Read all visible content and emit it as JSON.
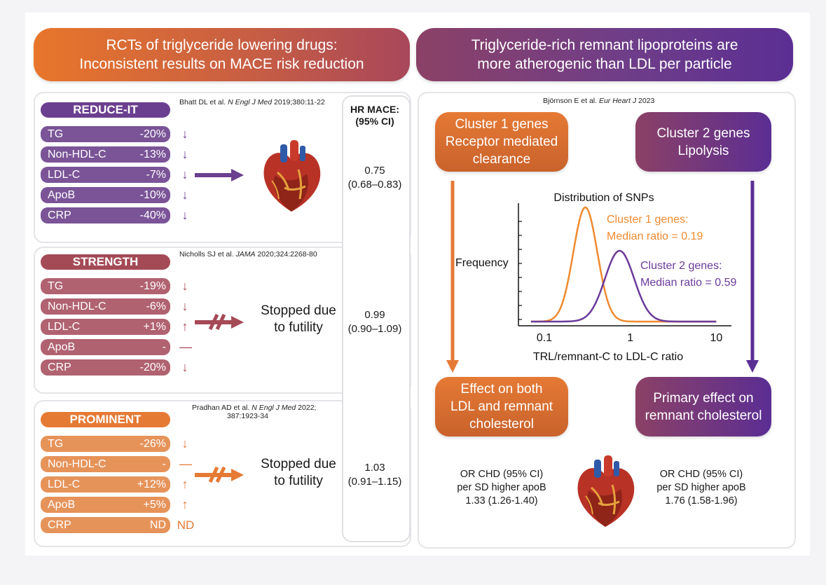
{
  "left_banner": {
    "line1": "RCTs of triglyceride lowering drugs:",
    "line2": "Inconsistent results on MACE risk reduction"
  },
  "right_banner": {
    "line1": "Triglyceride-rich remnant lipoproteins are",
    "line2": "more atherogenic than LDL per particle"
  },
  "hr_header": {
    "line1": "HR MACE:",
    "line2": "(95% CI)"
  },
  "trials": [
    {
      "name": "REDUCE-IT",
      "ref_plain": "Bhatt DL et al. ",
      "ref_journal": "N Engl J Med",
      "ref_tail": " 2019;380:11-22",
      "ref_line2": "",
      "color": "#6b3f8f",
      "rows": [
        {
          "name": "TG",
          "value": "-20%",
          "arrow": "↓"
        },
        {
          "name": "Non-HDL-C",
          "value": "-13%",
          "arrow": "↓"
        },
        {
          "name": "LDL-C",
          "value": "-7%",
          "arrow": "↓"
        },
        {
          "name": "ApoB",
          "value": "-10%",
          "arrow": "↓"
        },
        {
          "name": "CRP",
          "value": "-40%",
          "arrow": "↓"
        }
      ],
      "outcome": "",
      "hr": "0.75",
      "ci": "(0.68–0.83)"
    },
    {
      "name": "STRENGTH",
      "ref_plain": "Nicholls SJ et al. ",
      "ref_journal": "JAMA",
      "ref_tail": " 2020;324:2268-80",
      "ref_line2": "",
      "color": "#a44a57",
      "rows": [
        {
          "name": "TG",
          "value": "-19%",
          "arrow": "↓"
        },
        {
          "name": "Non-HDL-C",
          "value": "-6%",
          "arrow": "↓"
        },
        {
          "name": "LDL-C",
          "value": "+1%",
          "arrow": "↑"
        },
        {
          "name": "ApoB",
          "value": "-",
          "arrow": "—"
        },
        {
          "name": "CRP",
          "value": "-20%",
          "arrow": "↓"
        }
      ],
      "outcome": {
        "line1": "Stopped due",
        "line2": "to futility"
      },
      "hr": "0.99",
      "ci": "(0.90–1.09)"
    },
    {
      "name": "PROMINENT",
      "ref_plain": "Pradhan AD et al. ",
      "ref_journal": "N Engl J Med",
      "ref_tail": " 2022;",
      "ref_line2": "387:1923-34",
      "color": "#e57a35",
      "rows": [
        {
          "name": "TG",
          "value": "-26%",
          "arrow": "↓"
        },
        {
          "name": "Non-HDL-C",
          "value": "-",
          "arrow": "—"
        },
        {
          "name": "LDL-C",
          "value": "+12%",
          "arrow": "↑"
        },
        {
          "name": "ApoB",
          "value": "+5%",
          "arrow": "↑"
        },
        {
          "name": "CRP",
          "value": "ND",
          "arrow": "ND"
        }
      ],
      "outcome": {
        "line1": "Stopped due",
        "line2": "to futility"
      },
      "hr": "1.03",
      "ci": "(0.91–1.15)"
    }
  ],
  "right": {
    "ref_plain": "Björnson E et al. ",
    "ref_journal": "Eur Heart J",
    "ref_tail": " 2023",
    "cluster1": {
      "line1": "Cluster 1 genes",
      "line2": "Receptor mediated",
      "line3": "clearance"
    },
    "cluster2": {
      "line1": "Cluster 2 genes",
      "line2": "Lipolysis"
    },
    "effect1": {
      "line1": "Effect on both",
      "line2": "LDL and remnant",
      "line3": "cholesterol"
    },
    "effect2": {
      "line1": "Primary effect on",
      "line2": "remnant cholesterol"
    },
    "or1": {
      "line1": "OR CHD (95% CI)",
      "line2": "per SD higher apoB",
      "line3": "1.33 (1.26-1.40)"
    },
    "or2": {
      "line1": "OR CHD (95% CI)",
      "line2": "per SD higher apoB",
      "line3": "1.76 (1.58-1.96)"
    }
  },
  "chart_data": {
    "type": "line",
    "title": "Distribution of SNPs",
    "xlabel": "TRL/remnant-C to LDL-C ratio",
    "ylabel": "Frequency",
    "xscale": "log",
    "xlim": [
      0.05,
      15
    ],
    "x_ticks": [
      "0.1",
      "1",
      "10"
    ],
    "series": [
      {
        "name": "Cluster 1 genes",
        "annotation1": "Cluster 1 genes:",
        "annotation2": "Median ratio = 0.19",
        "median_ratio": 0.19,
        "peak_x": 0.3,
        "peak": 1.0,
        "color": "#ef8a2e"
      },
      {
        "name": "Cluster 2 genes",
        "annotation1": "Cluster 2 genes:",
        "annotation2": "Median ratio = 0.59",
        "median_ratio": 0.59,
        "peak_x": 0.75,
        "peak": 0.62,
        "color": "#6b3a9a"
      }
    ]
  },
  "colors": {
    "orange": "#e57a35",
    "purple": "#6b3f8f",
    "rose": "#a44a57"
  }
}
